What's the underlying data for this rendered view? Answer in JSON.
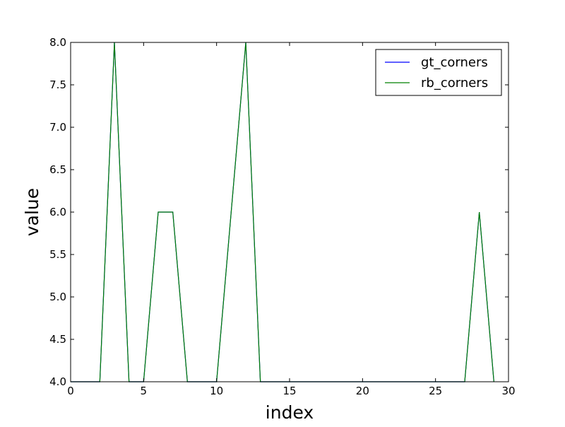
{
  "chart_data": {
    "type": "line",
    "title": "",
    "xlabel": "index",
    "ylabel": "value",
    "xlim": [
      0,
      30
    ],
    "ylim": [
      4.0,
      8.0
    ],
    "xticks": [
      "0",
      "5",
      "10",
      "15",
      "20",
      "25",
      "30"
    ],
    "xtick_values": [
      0,
      5,
      10,
      15,
      20,
      25,
      30
    ],
    "yticks": [
      "4.0",
      "4.5",
      "5.0",
      "5.5",
      "6.0",
      "6.5",
      "7.0",
      "7.5",
      "8.0"
    ],
    "ytick_values": [
      4.0,
      4.5,
      5.0,
      5.5,
      6.0,
      6.5,
      7.0,
      7.5,
      8.0
    ],
    "grid": false,
    "legend_position": "top-right",
    "x": [
      0,
      1,
      2,
      3,
      4,
      5,
      6,
      7,
      8,
      9,
      10,
      11,
      12,
      13,
      14,
      15,
      16,
      17,
      18,
      19,
      20,
      21,
      22,
      23,
      24,
      25,
      26,
      27,
      28,
      29
    ],
    "series": [
      {
        "name": "gt_corners",
        "color": "#0000ff",
        "values": [
          4,
          4,
          4,
          8,
          4,
          4,
          6,
          6,
          4,
          4,
          4,
          6,
          8,
          4,
          4,
          4,
          4,
          4,
          4,
          4,
          4,
          4,
          4,
          4,
          4,
          4,
          4,
          4,
          6,
          4
        ]
      },
      {
        "name": "rb_corners",
        "color": "#008000",
        "values": [
          4,
          4,
          4,
          8,
          4,
          4,
          6,
          6,
          4,
          4,
          4,
          6,
          8,
          4,
          4,
          4,
          4,
          4,
          4,
          4,
          4,
          4,
          4,
          4,
          4,
          4,
          4,
          4,
          6,
          4
        ]
      }
    ]
  }
}
